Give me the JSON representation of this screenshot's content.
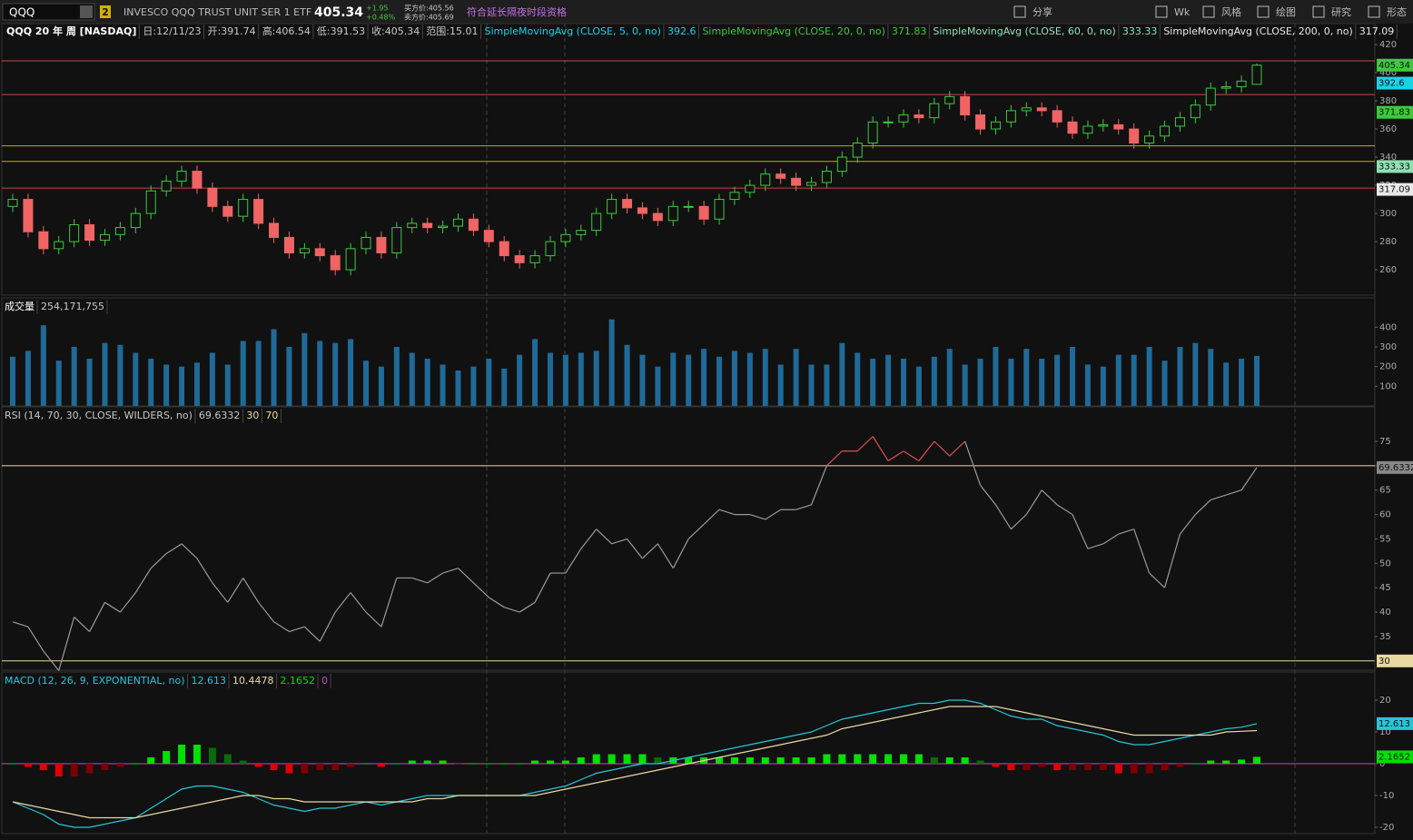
{
  "toolbar": {
    "symbol": "QQQ",
    "badge": "2",
    "description": "INVESCO QQQ TRUST UNIT SER 1 ETF",
    "last": "405.34",
    "change": "+1.95",
    "change_pct": "+0.48%",
    "bid": "买方价:405.56",
    "ask": "卖方价:405.69",
    "notice": "符合延长隔夜时段资格",
    "buttons": [
      "分享",
      "Wk",
      "风格",
      "绘图",
      "研究",
      "形态"
    ]
  },
  "chart_data": [
    {
      "type": "candlestick",
      "title": "QQQ 20 年 周 [NASDAQ]",
      "info": [
        "日:12/11/23",
        "开:391.74",
        "高:406.54",
        "低:391.53",
        "收:405.34",
        "范围:15.01"
      ],
      "open": [
        305,
        310,
        287,
        275,
        280,
        292,
        281,
        285,
        290,
        300,
        316,
        323,
        330,
        318,
        305,
        298,
        310,
        293,
        283,
        272,
        275,
        270,
        260,
        275,
        283,
        272,
        290,
        293,
        290,
        291,
        296,
        288,
        280,
        270,
        265,
        270,
        280,
        285,
        288,
        300,
        310,
        304,
        300,
        295,
        305,
        305,
        296,
        310,
        315,
        320,
        328,
        325,
        320,
        322,
        330,
        340,
        350,
        365,
        365,
        370,
        368,
        378,
        383,
        370,
        360,
        365,
        373,
        375,
        373,
        365,
        357,
        362,
        363,
        360,
        350,
        355,
        362,
        368,
        377,
        389,
        390,
        391.74
      ],
      "high": [
        314,
        314,
        291,
        284,
        296,
        296,
        289,
        294,
        304,
        320,
        327,
        334,
        334,
        322,
        309,
        314,
        314,
        297,
        287,
        279,
        279,
        274,
        279,
        287,
        287,
        294,
        297,
        297,
        295,
        300,
        300,
        292,
        284,
        274,
        274,
        284,
        289,
        292,
        304,
        314,
        314,
        308,
        304,
        309,
        309,
        309,
        314,
        319,
        324,
        332,
        332,
        329,
        326,
        334,
        344,
        354,
        369,
        369,
        374,
        374,
        382,
        387,
        387,
        374,
        369,
        377,
        379,
        379,
        377,
        369,
        366,
        367,
        367,
        364,
        359,
        366,
        372,
        381,
        393,
        394,
        398,
        406.54
      ],
      "low": [
        301,
        283,
        271,
        271,
        276,
        277,
        277,
        281,
        286,
        296,
        312,
        319,
        314,
        301,
        294,
        294,
        289,
        279,
        268,
        268,
        266,
        256,
        256,
        271,
        268,
        268,
        286,
        286,
        286,
        287,
        284,
        276,
        266,
        261,
        261,
        266,
        276,
        281,
        284,
        296,
        300,
        296,
        291,
        291,
        301,
        292,
        292,
        306,
        311,
        316,
        321,
        316,
        316,
        318,
        326,
        336,
        346,
        361,
        361,
        364,
        364,
        374,
        366,
        356,
        356,
        361,
        369,
        369,
        361,
        353,
        353,
        358,
        356,
        346,
        346,
        351,
        358,
        364,
        373,
        385,
        386,
        391.53
      ],
      "close": [
        310,
        287,
        275,
        280,
        292,
        281,
        285,
        290,
        300,
        316,
        323,
        330,
        318,
        305,
        298,
        310,
        293,
        283,
        272,
        275,
        270,
        260,
        275,
        283,
        272,
        290,
        293,
        290,
        291,
        296,
        288,
        280,
        270,
        265,
        270,
        280,
        285,
        288,
        300,
        310,
        304,
        300,
        295,
        305,
        305,
        296,
        310,
        315,
        320,
        328,
        325,
        320,
        322,
        330,
        340,
        350,
        365,
        365,
        370,
        368,
        378,
        383,
        370,
        360,
        365,
        373,
        375,
        373,
        365,
        357,
        362,
        363,
        360,
        350,
        355,
        362,
        368,
        377,
        389,
        390,
        394,
        405.34
      ],
      "up_color": "#3ec93e",
      "down_color": "#f06464",
      "ylim": [
        242,
        422.6
      ],
      "yticks": [
        260,
        280,
        300,
        320,
        340,
        360,
        380,
        400,
        420
      ],
      "levels": [
        {
          "value": 408.4,
          "color": "#c94545"
        },
        {
          "value": 384.5,
          "color": "#c94545"
        },
        {
          "value": 348,
          "color": "#c9a800"
        },
        {
          "value": 337,
          "color": "#c9a800"
        },
        {
          "value": 318,
          "color": "#c94545"
        }
      ],
      "last_price": 405.34,
      "last_color": "#3ec93e",
      "moving_averages": [
        {
          "name": "SimpleMovingAvg (CLOSE, 5, 0, no)",
          "color": "#19d3e6",
          "value": 392.6
        },
        {
          "name": "SimpleMovingAvg (CLOSE, 20, 0, no)",
          "color": "#3ec93e",
          "value": 371.83
        },
        {
          "name": "SimpleMovingAvg (CLOSE, 60, 0, no)",
          "color": "#8fe0b4",
          "value": 333.33
        },
        {
          "name": "SimpleMovingAvg (CLOSE, 200, 0, no)",
          "color": "#e8e8e8",
          "value": 317.09
        }
      ]
    },
    {
      "type": "bar",
      "title": "成交量",
      "last_label": "254,171,755",
      "values": [
        250,
        280,
        410,
        230,
        300,
        240,
        320,
        310,
        270,
        240,
        210,
        200,
        220,
        270,
        210,
        330,
        330,
        390,
        300,
        370,
        330,
        320,
        340,
        230,
        200,
        300,
        270,
        240,
        210,
        180,
        200,
        240,
        190,
        260,
        340,
        270,
        260,
        270,
        280,
        440,
        310,
        260,
        200,
        270,
        260,
        290,
        250,
        280,
        270,
        290,
        210,
        290,
        210,
        210,
        320,
        270,
        240,
        260,
        240,
        200,
        250,
        290,
        210,
        240,
        300,
        240,
        290,
        240,
        260,
        300,
        210,
        200,
        260,
        260,
        300,
        230,
        300,
        320,
        290,
        220,
        240,
        254.171755
      ],
      "color": "#1f6a98",
      "ylim": [
        0,
        540
      ],
      "yticks": [
        100,
        200,
        300,
        400
      ]
    },
    {
      "type": "line",
      "title": "RSI (14, 70, 30, CLOSE, WILDERS, no)",
      "values": [
        38,
        37,
        32,
        28,
        39,
        36,
        42,
        40,
        44,
        49,
        52,
        54,
        51,
        46,
        42,
        47,
        42,
        38,
        36,
        37,
        34,
        40,
        44,
        40,
        37,
        47,
        47,
        46,
        48,
        49,
        46,
        43,
        41,
        40,
        42,
        48,
        48,
        53,
        57,
        54,
        55,
        51,
        54,
        49,
        55,
        58,
        61,
        60,
        60,
        59,
        61,
        61,
        62,
        70,
        73,
        73,
        76,
        71,
        73,
        71,
        75,
        72,
        75,
        66,
        62,
        57,
        60,
        65,
        62,
        60,
        53,
        54,
        56,
        57,
        48,
        45,
        56,
        60,
        63,
        64,
        65,
        69.6332
      ],
      "last": 69.6332,
      "color": "#9a9a9a",
      "overbought_color": "#e05050",
      "levels": [
        30,
        70
      ],
      "level_color": "#e8d9a0",
      "ylim": [
        28.1,
        81.7
      ],
      "yticks": [
        35,
        40,
        45,
        50,
        55,
        60,
        65,
        70,
        75
      ]
    },
    {
      "type": "macd",
      "title": "MACD (12, 26, 9, EXPONENTIAL, no)",
      "macd": [
        -12,
        -14,
        -16,
        -19,
        -20,
        -20,
        -19,
        -18,
        -17,
        -14,
        -11,
        -8,
        -7,
        -7,
        -8,
        -9,
        -11,
        -13,
        -14,
        -15,
        -14,
        -14,
        -13,
        -12,
        -13,
        -12,
        -11,
        -10,
        -10,
        -10,
        -10,
        -10,
        -10,
        -10,
        -9,
        -8,
        -7,
        -5,
        -3,
        -2,
        -1,
        0,
        0,
        1,
        2,
        3,
        4,
        5,
        6,
        7,
        8,
        9,
        10,
        12,
        14,
        15,
        16,
        17,
        18,
        19,
        19,
        20,
        20,
        19,
        17,
        15,
        14,
        14,
        12,
        11,
        10,
        9,
        7,
        6,
        6,
        7,
        8,
        9,
        10,
        11,
        11.5,
        12.613
      ],
      "signal": [
        -12,
        -13,
        -14,
        -15,
        -16,
        -17,
        -17,
        -17,
        -17,
        -16,
        -15,
        -14,
        -13,
        -12,
        -11,
        -10,
        -10,
        -11,
        -11,
        -12,
        -12,
        -12,
        -12,
        -12,
        -12,
        -12,
        -12,
        -11,
        -11,
        -10,
        -10,
        -10,
        -10,
        -10,
        -10,
        -9,
        -8,
        -7,
        -6,
        -5,
        -4,
        -3,
        -2,
        -1,
        0,
        1,
        2,
        3,
        4,
        5,
        6,
        7,
        8,
        9,
        11,
        12,
        13,
        14,
        15,
        16,
        17,
        18,
        18,
        18,
        18,
        17,
        16,
        15,
        14,
        13,
        12,
        11,
        10,
        9,
        9,
        9,
        9,
        9,
        9,
        10,
        10.2,
        10.4478
      ],
      "diff": [
        0,
        -1,
        -2,
        -4,
        -4,
        -3,
        -2,
        -1,
        0,
        2,
        4,
        6,
        6,
        5,
        3,
        1,
        -1,
        -2,
        -3,
        -3,
        -2,
        -2,
        -1,
        0,
        -1,
        0,
        1,
        1,
        1,
        0,
        0,
        0,
        0,
        0,
        1,
        1,
        1,
        2,
        3,
        3,
        3,
        3,
        2,
        2,
        2,
        2,
        2,
        2,
        2,
        2,
        2,
        2,
        2,
        3,
        3,
        3,
        3,
        3,
        3,
        3,
        2,
        2,
        2,
        1,
        -1,
        -2,
        -2,
        -1,
        -2,
        -2,
        -2,
        -2,
        -3,
        -3,
        -3,
        -2,
        -1,
        0,
        1,
        1,
        1.3,
        2.1652
      ],
      "zero_line": 0,
      "macd_color": "#26c6da",
      "signal_color": "#e8d9a0",
      "up_color": "#00e000",
      "down_color": "#e00000",
      "zero_color": "#c050c0",
      "ylim": [
        -22,
        28.3
      ],
      "yticks": [
        -20,
        -10,
        0,
        10,
        20
      ]
    }
  ]
}
